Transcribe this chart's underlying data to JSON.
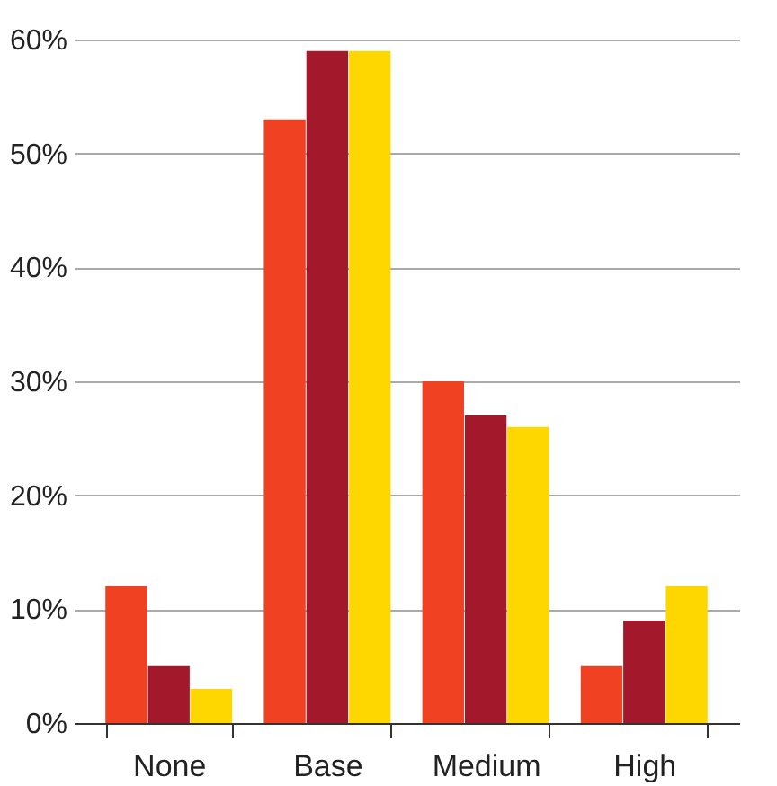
{
  "chart_data": {
    "type": "bar",
    "categories": [
      "None",
      "Base",
      "Medium",
      "High"
    ],
    "series": [
      {
        "color": "#f04123",
        "values": [
          12,
          53,
          30,
          5
        ]
      },
      {
        "color": "#a3182a",
        "values": [
          5,
          59,
          27,
          9
        ]
      },
      {
        "color": "#ffd700",
        "values": [
          3,
          59,
          26,
          12
        ]
      }
    ],
    "ylim": [
      0,
      60
    ],
    "yticks": [
      {
        "value": 0,
        "label": "0%"
      },
      {
        "value": 10,
        "label": "10%"
      },
      {
        "value": 20,
        "label": "20%"
      },
      {
        "value": 30,
        "label": "30%"
      },
      {
        "value": 40,
        "label": "40%"
      },
      {
        "value": 50,
        "label": "50%"
      },
      {
        "value": 60,
        "label": "60%"
      }
    ],
    "grid": "y",
    "legend": false
  }
}
